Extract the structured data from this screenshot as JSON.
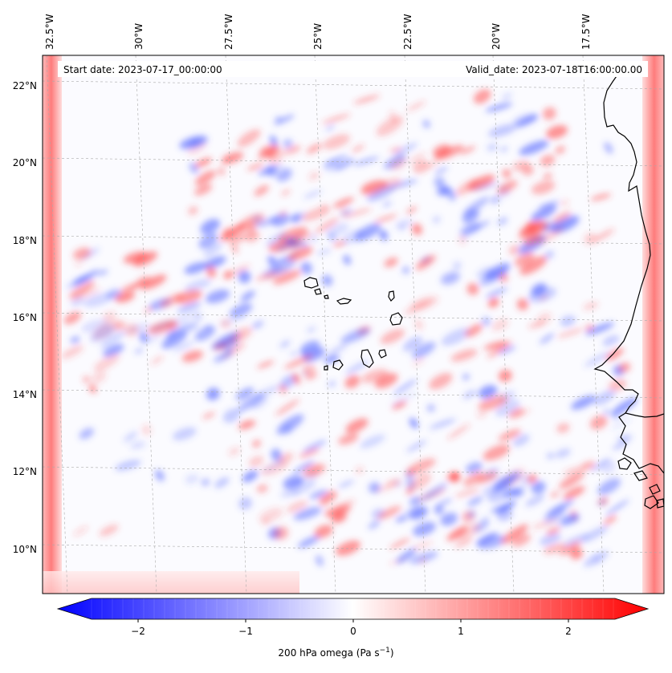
{
  "header": {
    "start_date": "Start date: 2023-07-17_00:00:00",
    "valid_date": "Valid_date: 2023-07-18T16:00:00.00"
  },
  "map": {
    "lon_labels": [
      "32.5°W",
      "30°W",
      "27.5°W",
      "25°W",
      "22.5°W",
      "20°W",
      "17.5°W"
    ],
    "lat_labels": [
      "22°N",
      "20°N",
      "18°N",
      "16°N",
      "14°N",
      "12°N",
      "10°N"
    ],
    "extent": {
      "lon_min": -33.2,
      "lon_max": -15.6,
      "lat_min": 8.9,
      "lat_max": 22.7
    },
    "gridlines": true,
    "projection_skewed": true
  },
  "colorbar": {
    "label_text": "200 hPa omega (Pa s",
    "label_sup": "−1",
    "label_close": ")",
    "ticks": [
      "−2",
      "−1",
      "0",
      "1",
      "2"
    ],
    "range": [
      -2.75,
      2.75
    ],
    "extend": "both",
    "cmap": "bwr",
    "colors": {
      "min": "#0000ff",
      "mid": "#ffffff",
      "max": "#ff0000"
    }
  },
  "chart_data": {
    "type": "heatmap",
    "title": "",
    "variable": "200 hPa omega",
    "units": "Pa s-1",
    "value_range": [
      -2.75,
      2.75
    ],
    "colorbar_ticks": [
      -2,
      -1,
      0,
      1,
      2
    ],
    "xlabel": "",
    "ylabel": "",
    "x_ticks": [
      "32.5°W",
      "30°W",
      "27.5°W",
      "25°W",
      "22.5°W",
      "20°W",
      "17.5°W"
    ],
    "y_ticks": [
      "22°N",
      "20°N",
      "18°N",
      "16°N",
      "14°N",
      "12°N",
      "10°N"
    ]
  }
}
